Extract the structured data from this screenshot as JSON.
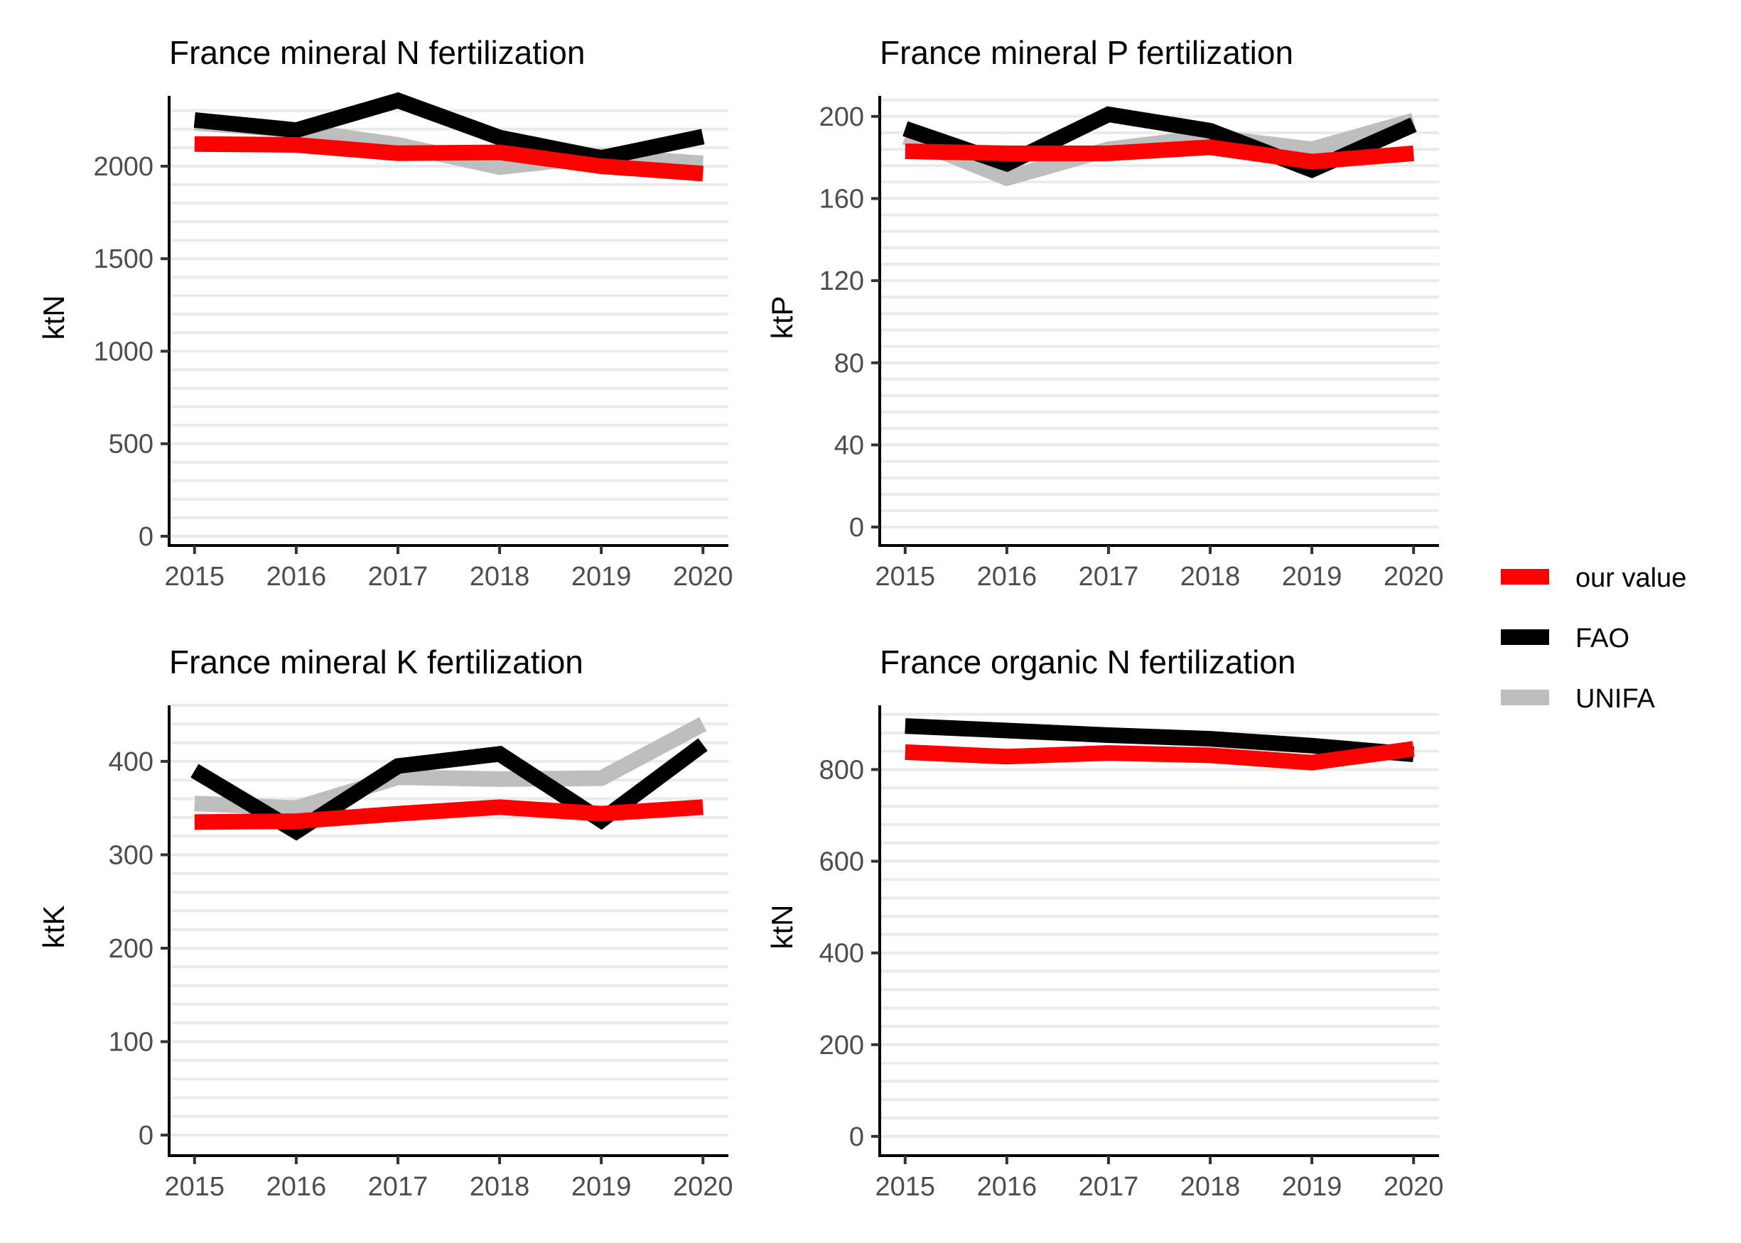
{
  "legend": {
    "items": [
      {
        "label": "our value",
        "color": "#ff0000"
      },
      {
        "label": "FAO",
        "color": "#000000"
      },
      {
        "label": "UNIFA",
        "color": "#bebebe"
      }
    ]
  },
  "chart_data": [
    {
      "type": "line",
      "title": "France mineral N fertilization",
      "xlabel": "",
      "ylabel": "ktN",
      "x": [
        2015,
        2016,
        2017,
        2018,
        2019,
        2020
      ],
      "xlim": [
        2014.75,
        2020.25
      ],
      "ylim": [
        -50,
        2380
      ],
      "y_ticks": [
        0,
        500,
        1000,
        1500,
        2000
      ],
      "grid": "horizontal",
      "series": [
        {
          "name": "UNIFA",
          "color": "#bebebe",
          "values": [
            2235,
            2195,
            2115,
            1995,
            2055,
            2015
          ]
        },
        {
          "name": "FAO",
          "color": "#000000",
          "values": [
            2250,
            2195,
            2355,
            2155,
            2045,
            2160
          ]
        },
        {
          "name": "our value",
          "color": "#ff0000",
          "values": [
            2120,
            2115,
            2070,
            2075,
            2000,
            1960
          ]
        }
      ]
    },
    {
      "type": "line",
      "title": "France mineral P fertilization",
      "xlabel": "",
      "ylabel": "ktP",
      "x": [
        2015,
        2016,
        2017,
        2018,
        2019,
        2020
      ],
      "xlim": [
        2014.75,
        2020.25
      ],
      "ylim": [
        -9,
        210
      ],
      "y_ticks": [
        0,
        40,
        80,
        120,
        160,
        200
      ],
      "grid": "horizontal",
      "series": [
        {
          "name": "UNIFA",
          "color": "#bebebe",
          "values": [
            190,
            170,
            184,
            190,
            184,
            198
          ]
        },
        {
          "name": "FAO",
          "color": "#000000",
          "values": [
            194,
            177,
            201,
            193,
            174,
            196
          ]
        },
        {
          "name": "our value",
          "color": "#ff0000",
          "values": [
            183,
            182,
            182,
            185,
            178,
            182
          ]
        }
      ]
    },
    {
      "type": "line",
      "title": "France mineral K fertilization",
      "xlabel": "",
      "ylabel": "ktK",
      "x": [
        2015,
        2016,
        2017,
        2018,
        2019,
        2020
      ],
      "xlim": [
        2014.75,
        2020.25
      ],
      "ylim": [
        -22,
        460
      ],
      "y_ticks": [
        0,
        100,
        200,
        300,
        400
      ],
      "grid": "horizontal",
      "series": [
        {
          "name": "UNIFA",
          "color": "#bebebe",
          "values": [
            355,
            350,
            383,
            381,
            382,
            440
          ]
        },
        {
          "name": "FAO",
          "color": "#000000",
          "values": [
            390,
            325,
            395,
            408,
            337,
            418
          ]
        },
        {
          "name": "our value",
          "color": "#ff0000",
          "values": [
            335,
            336,
            344,
            351,
            344,
            351
          ]
        }
      ]
    },
    {
      "type": "line",
      "title": "France organic N fertilization",
      "xlabel": "",
      "ylabel": "ktN",
      "x": [
        2015,
        2016,
        2017,
        2018,
        2019,
        2020
      ],
      "xlim": [
        2014.75,
        2020.25
      ],
      "ylim": [
        -42,
        940
      ],
      "y_ticks": [
        0,
        200,
        400,
        600,
        800
      ],
      "grid": "horizontal",
      "series": [
        {
          "name": "FAO",
          "color": "#000000",
          "values": [
            895,
            885,
            875,
            867,
            852,
            833
          ]
        },
        {
          "name": "our value",
          "color": "#ff0000",
          "values": [
            838,
            828,
            836,
            831,
            815,
            845
          ]
        }
      ]
    }
  ]
}
